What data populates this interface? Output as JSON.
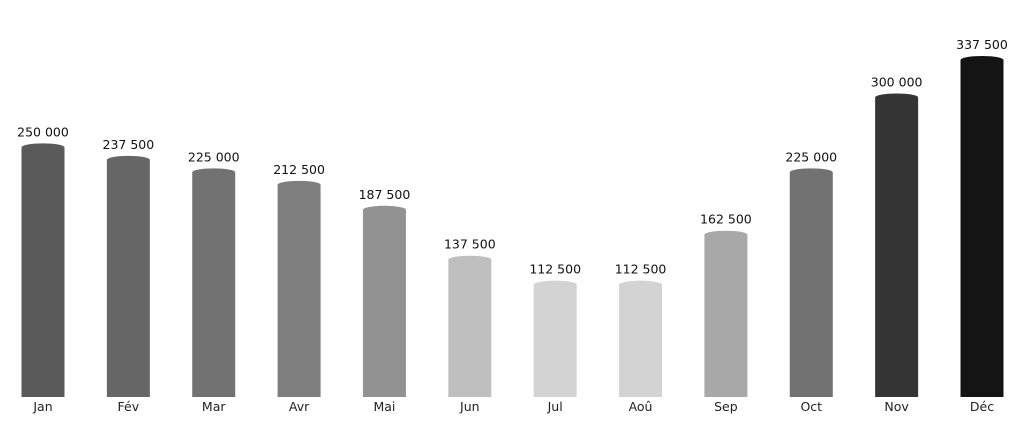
{
  "chart_data": {
    "type": "bar",
    "title": "",
    "xlabel": "",
    "ylabel": "",
    "categories": [
      "Jan",
      "Fév",
      "Mar",
      "Avr",
      "Mai",
      "Jun",
      "Jul",
      "Aoû",
      "Sep",
      "Oct",
      "Nov",
      "Déc"
    ],
    "values": [
      250000,
      237500,
      225000,
      212500,
      187500,
      137500,
      112500,
      112500,
      162500,
      225000,
      300000,
      337500
    ],
    "value_labels": [
      "250 000",
      "237 500",
      "225 000",
      "212 500",
      "187 500",
      "137 500",
      "112 500",
      "112 500",
      "162 500",
      "225 000",
      "300 000",
      "337 500"
    ],
    "bar_colors": [
      "#5a5a5a",
      "#666666",
      "#727272",
      "#7e7e7e",
      "#929292",
      "#bfbfbf",
      "#d3d3d3",
      "#d3d3d3",
      "#a8a8a8",
      "#727272",
      "#353535",
      "#141414"
    ],
    "ylim": [
      0,
      337500
    ],
    "grid": false,
    "legend": "none"
  }
}
